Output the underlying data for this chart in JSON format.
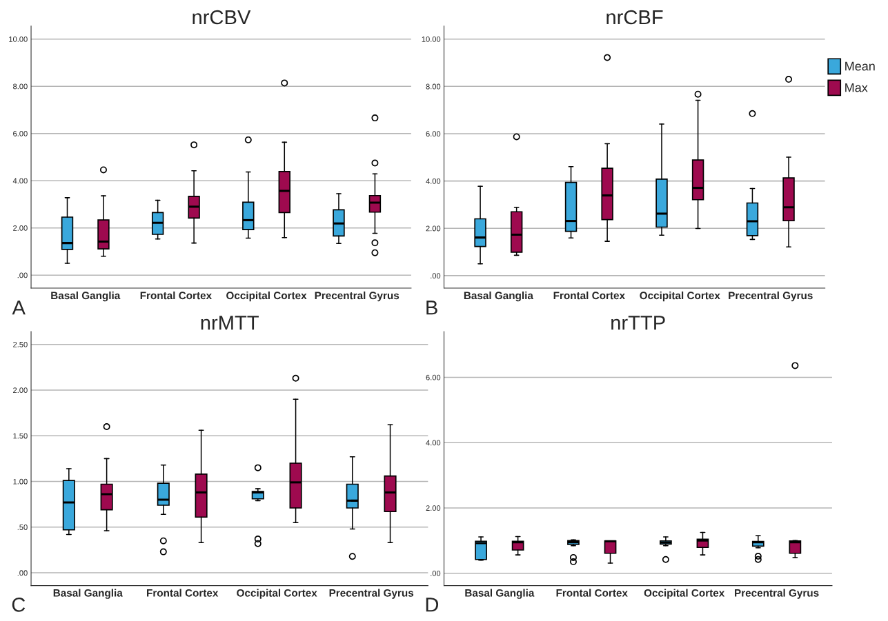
{
  "chart_data": [
    {
      "type": "box",
      "title": "nrCBV",
      "categories": [
        "Basal Ganglia",
        "Frontal Cortex",
        "Occipital Cortex",
        "Precentral Gyrus"
      ],
      "ylim": [
        -0.55,
        10.55
      ],
      "yticks": [
        {
          "value": 0,
          "label": ".00"
        },
        {
          "value": 2,
          "label": "2.00"
        },
        {
          "value": 4,
          "label": "4.00"
        },
        {
          "value": 6,
          "label": "6.00"
        },
        {
          "value": 8,
          "label": "8.00"
        },
        {
          "value": 10,
          "label": "10.00"
        }
      ],
      "grid": "y",
      "legend": false,
      "annotations": [
        "A"
      ],
      "series": [
        {
          "color": "#3aa8dc",
          "boxes": [
            {
              "low": 0.5,
              "q1": 1.09,
              "median": 1.36,
              "q3": 2.46,
              "high": 3.28
            },
            {
              "low": 1.53,
              "q1": 1.73,
              "median": 2.22,
              "q3": 2.65,
              "high": 3.17
            },
            {
              "low": 1.57,
              "q1": 1.93,
              "median": 2.33,
              "q3": 3.09,
              "high": 4.37,
              "outliers": [
                5.73
              ]
            },
            {
              "low": 1.34,
              "q1": 1.66,
              "median": 2.19,
              "q3": 2.77,
              "high": 3.45
            }
          ]
        },
        {
          "color": "#9e0a4f",
          "boxes": [
            {
              "low": 0.8,
              "q1": 1.11,
              "median": 1.42,
              "q3": 2.34,
              "high": 3.36,
              "outliers": [
                4.46
              ]
            },
            {
              "low": 1.36,
              "q1": 2.42,
              "median": 2.9,
              "q3": 3.34,
              "high": 4.42,
              "outliers": [
                5.52
              ]
            },
            {
              "low": 1.59,
              "q1": 2.65,
              "median": 3.57,
              "q3": 4.39,
              "high": 5.63,
              "outliers": [
                8.14
              ]
            },
            {
              "low": 1.77,
              "q1": 2.67,
              "median": 3.07,
              "q3": 3.37,
              "high": 4.29,
              "outliers": [
                6.66,
                4.75,
                1.37,
                0.95
              ]
            }
          ]
        }
      ]
    },
    {
      "type": "box",
      "title": "nrCBF",
      "categories": [
        "Basal Ganglia",
        "Frontal Cortex",
        "Occipital Cortex",
        "Precentral Gyrus"
      ],
      "ylim": [
        -0.53,
        10.55
      ],
      "yticks": [
        {
          "value": 0,
          "label": ".00"
        },
        {
          "value": 2,
          "label": "2.00"
        },
        {
          "value": 4,
          "label": "4.00"
        },
        {
          "value": 6,
          "label": "6.00"
        },
        {
          "value": 8,
          "label": "8.00"
        },
        {
          "value": 10,
          "label": "10.00"
        }
      ],
      "grid": "y",
      "legend": "right",
      "annotations": [
        "B"
      ],
      "series": [
        {
          "name": "Mean",
          "color": "#3aa8dc",
          "boxes": [
            {
              "low": 0.5,
              "q1": 1.23,
              "median": 1.61,
              "q3": 2.4,
              "high": 3.78
            },
            {
              "low": 1.59,
              "q1": 1.87,
              "median": 2.31,
              "q3": 3.94,
              "high": 4.61
            },
            {
              "low": 1.71,
              "q1": 2.05,
              "median": 2.62,
              "q3": 4.08,
              "high": 6.41
            },
            {
              "low": 1.53,
              "q1": 1.69,
              "median": 2.3,
              "q3": 3.07,
              "high": 3.68,
              "outliers": [
                6.85
              ]
            }
          ]
        },
        {
          "name": "Max",
          "color": "#9e0a4f",
          "boxes": [
            {
              "low": 0.86,
              "q1": 0.99,
              "median": 1.73,
              "q3": 2.7,
              "high": 2.88,
              "outliers": [
                5.87
              ]
            },
            {
              "low": 1.45,
              "q1": 2.37,
              "median": 3.39,
              "q3": 4.54,
              "high": 5.58,
              "outliers": [
                9.22
              ]
            },
            {
              "low": 1.99,
              "q1": 3.21,
              "median": 3.71,
              "q3": 4.89,
              "high": 7.41,
              "outliers": [
                7.67
              ]
            },
            {
              "low": 1.21,
              "q1": 2.32,
              "median": 2.89,
              "q3": 4.13,
              "high": 5.01,
              "outliers": [
                8.3
              ]
            }
          ]
        }
      ]
    },
    {
      "type": "box",
      "title": "nrMTT",
      "categories": [
        "Basal Ganglia",
        "Frontal Cortex",
        "Occipital Cortex",
        "Precentral Gyrus"
      ],
      "ylim": [
        -0.14,
        2.64
      ],
      "yticks": [
        {
          "value": 0,
          "label": ".00"
        },
        {
          "value": 0.5,
          "label": ".50"
        },
        {
          "value": 1,
          "label": "1.00"
        },
        {
          "value": 1.5,
          "label": "1.50"
        },
        {
          "value": 2,
          "label": "2.00"
        },
        {
          "value": 2.5,
          "label": "2.50"
        }
      ],
      "grid": "y",
      "legend": false,
      "annotations": [
        "C"
      ],
      "series": [
        {
          "color": "#3aa8dc",
          "boxes": [
            {
              "low": 0.42,
              "q1": 0.47,
              "median": 0.77,
              "q3": 1.01,
              "high": 1.14
            },
            {
              "low": 0.64,
              "q1": 0.74,
              "median": 0.8,
              "q3": 0.98,
              "high": 1.18,
              "outliers": [
                0.35,
                0.23
              ]
            },
            {
              "low": 0.79,
              "q1": 0.81,
              "median": 0.88,
              "q3": 0.89,
              "high": 0.92,
              "outliers": [
                1.15,
                0.37,
                0.32
              ]
            },
            {
              "low": 0.48,
              "q1": 0.71,
              "median": 0.79,
              "q3": 0.97,
              "high": 1.27,
              "outliers": [
                0.18
              ]
            }
          ]
        },
        {
          "color": "#9e0a4f",
          "boxes": [
            {
              "low": 0.46,
              "q1": 0.69,
              "median": 0.86,
              "q3": 0.97,
              "high": 1.25,
              "outliers": [
                1.6
              ]
            },
            {
              "low": 0.33,
              "q1": 0.61,
              "median": 0.88,
              "q3": 1.08,
              "high": 1.56
            },
            {
              "low": 0.55,
              "q1": 0.71,
              "median": 0.99,
              "q3": 1.2,
              "high": 1.9,
              "outliers": [
                2.13
              ]
            },
            {
              "low": 0.33,
              "q1": 0.67,
              "median": 0.88,
              "q3": 1.06,
              "high": 1.62
            }
          ]
        }
      ]
    },
    {
      "type": "box",
      "title": "nrTTP",
      "categories": [
        "Basal Ganglia",
        "Frontal Cortex",
        "Occipital Cortex",
        "Precentral Gyrus"
      ],
      "ylim": [
        -0.38,
        7.4
      ],
      "yticks": [
        {
          "value": 0,
          "label": ".00"
        },
        {
          "value": 2,
          "label": "2.00"
        },
        {
          "value": 4,
          "label": "4.00"
        },
        {
          "value": 6,
          "label": "6.00"
        }
      ],
      "grid": "y",
      "legend": false,
      "annotations": [
        "D"
      ],
      "series": [
        {
          "color": "#3aa8dc",
          "boxes": [
            {
              "low": 0.4,
              "q1": 0.42,
              "median": 0.92,
              "q3": 0.98,
              "high": 1.11
            },
            {
              "low": 0.84,
              "q1": 0.88,
              "median": 0.95,
              "q3": 1.0,
              "high": 1.02,
              "outliers": [
                0.48,
                0.35
              ]
            },
            {
              "low": 0.84,
              "q1": 0.89,
              "median": 0.94,
              "q3": 0.99,
              "high": 1.11,
              "outliers": [
                0.42
              ]
            },
            {
              "low": 0.78,
              "q1": 0.83,
              "median": 0.95,
              "q3": 0.97,
              "high": 1.15,
              "outliers": [
                0.52,
                0.42
              ]
            }
          ]
        },
        {
          "color": "#9e0a4f",
          "boxes": [
            {
              "low": 0.56,
              "q1": 0.71,
              "median": 0.95,
              "q3": 0.98,
              "high": 1.12
            },
            {
              "low": 0.31,
              "q1": 0.61,
              "median": 0.98,
              "q3": 0.99,
              "high": 0.99
            },
            {
              "low": 0.56,
              "q1": 0.79,
              "median": 1.0,
              "q3": 1.04,
              "high": 1.25
            },
            {
              "low": 0.48,
              "q1": 0.61,
              "median": 0.95,
              "q3": 0.99,
              "high": 1.0,
              "outliers": [
                6.36
              ]
            }
          ]
        }
      ]
    }
  ]
}
